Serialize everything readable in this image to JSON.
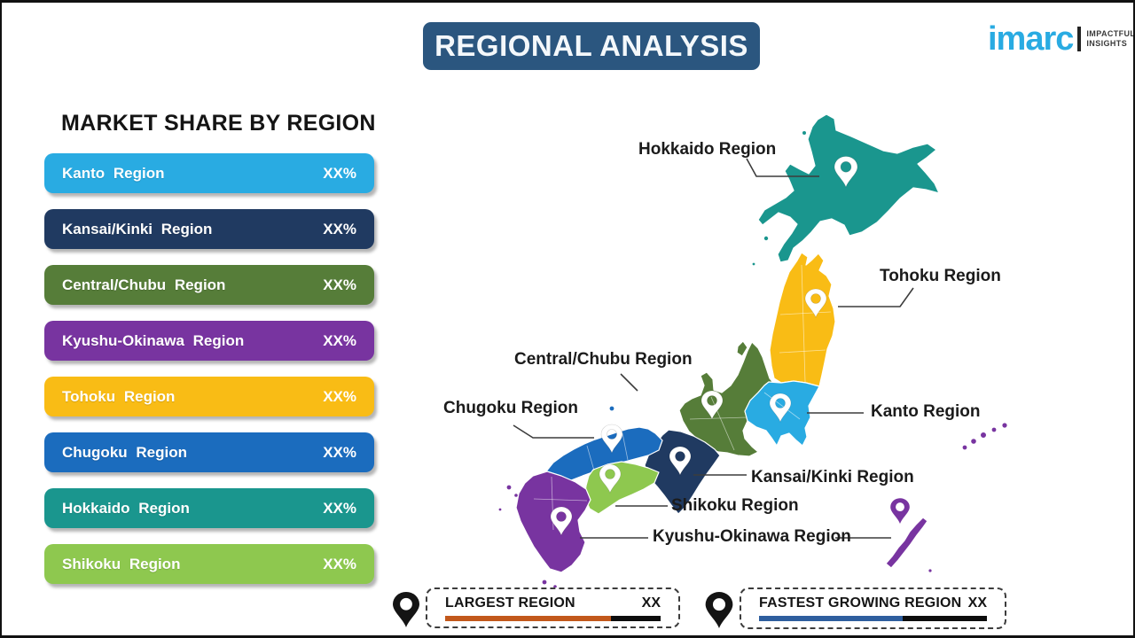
{
  "title": "REGIONAL ANALYSIS",
  "title_bg": "#2B567F",
  "logo": {
    "brand": "imarc",
    "brand_color": "#29ABE2",
    "tagline_line1": "IMPACTFUL",
    "tagline_line2": "INSIGHTS"
  },
  "market_share": {
    "heading": "MARKET SHARE BY REGION",
    "items": [
      {
        "label": "Kanto Region",
        "value": "XX%",
        "color": "#29ABE2",
        "region": "kanto"
      },
      {
        "label": "Kansai/Kinki Region",
        "value": "XX%",
        "color": "#203A61",
        "region": "kansai"
      },
      {
        "label": "Central/Chubu Region",
        "value": "XX%",
        "color": "#567D39",
        "region": "central"
      },
      {
        "label": "Kyushu-Okinawa Region",
        "value": "XX%",
        "color": "#7834A0",
        "region": "kyushu"
      },
      {
        "label": "Tohoku Region",
        "value": "XX%",
        "color": "#F9BC15",
        "region": "tohoku"
      },
      {
        "label": "Chugoku Region",
        "value": "XX%",
        "color": "#1B6CBE",
        "region": "chugoku"
      },
      {
        "label": "Hokkaido Region",
        "value": "XX%",
        "color": "#1A968E",
        "region": "hokkaido"
      },
      {
        "label": "Shikoku Region",
        "value": "XX%",
        "color": "#8EC84F",
        "region": "shikoku"
      }
    ]
  },
  "map": {
    "region_colors": {
      "kanto": "#29ABE2",
      "kansai": "#203A61",
      "central": "#567D39",
      "kyushu": "#7834A0",
      "tohoku": "#F9BC15",
      "chugoku": "#1B6CBE",
      "hokkaido": "#1A968E",
      "shikoku": "#8EC84F"
    },
    "labels": {
      "hokkaido": "Hokkaido Region",
      "tohoku": "Tohoku Region",
      "kanto": "Kanto Region",
      "central": "Central/Chubu Region",
      "chugoku": "Chugoku Region",
      "kansai": "Kansai/Kinki Region",
      "shikoku": "Shikoku Region",
      "kyushu": "Kyushu-Okinawa Region"
    }
  },
  "legend": {
    "largest": {
      "label": "LARGEST REGION",
      "value": "XX",
      "bar_color": "#C2581B"
    },
    "fastest": {
      "label": "FASTEST GROWING REGION",
      "value": "XX",
      "bar_color": "#2E5E9E"
    }
  }
}
